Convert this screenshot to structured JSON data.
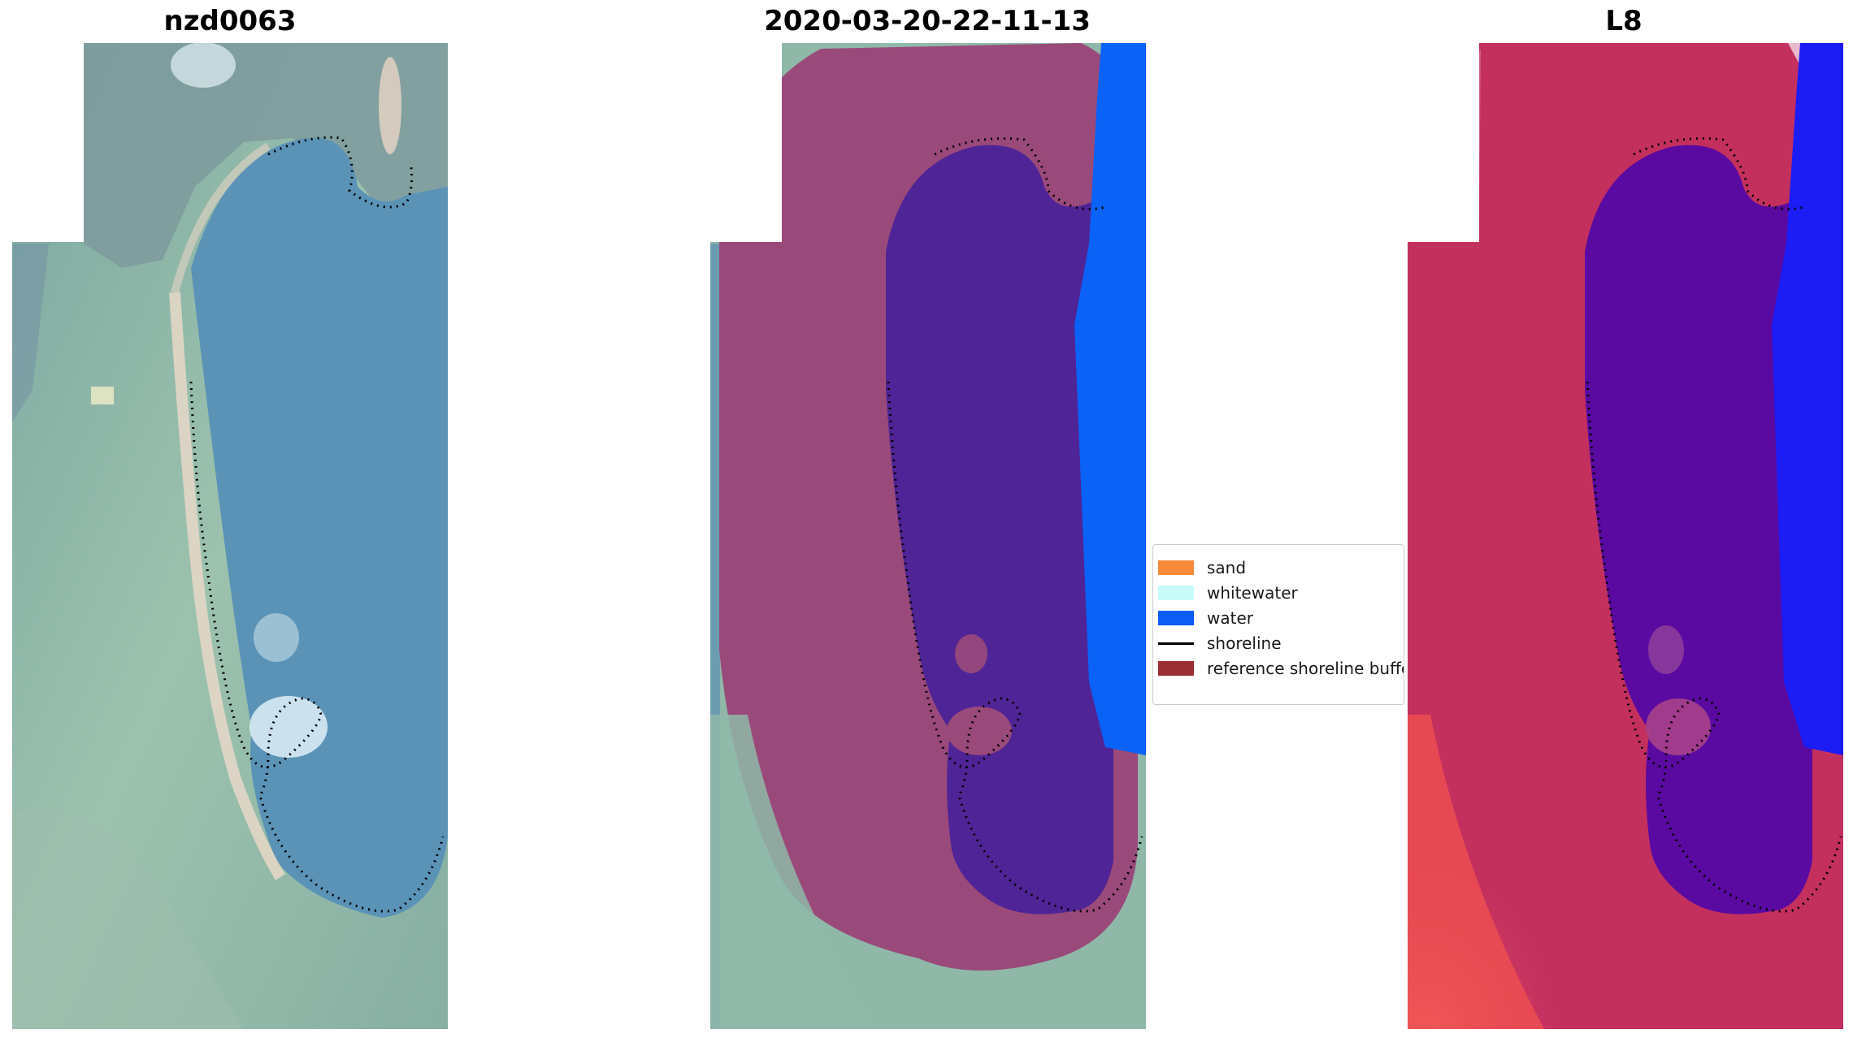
{
  "panels": [
    {
      "title": "nzd0063",
      "kind": "satellite-rgb"
    },
    {
      "title": "2020-03-20-22-11-13",
      "kind": "classification-overlay"
    },
    {
      "title": "L8",
      "kind": "water-index"
    }
  ],
  "legend": {
    "items": [
      {
        "label": "sand",
        "color": "#f88a3c",
        "shape": "patch"
      },
      {
        "label": "whitewater",
        "color": "#c8fafa",
        "shape": "patch"
      },
      {
        "label": "water",
        "color": "#0d5cf5",
        "shape": "patch"
      },
      {
        "label": "shoreline",
        "color": "#000000",
        "shape": "line"
      },
      {
        "label": "reference shoreline buffer",
        "color": "#9a2e33",
        "shape": "patch"
      }
    ]
  },
  "colors": {
    "rgb_water": "#5b92b8",
    "rgb_land": "#8fb8a8",
    "overlay_land": "#9a4a7a",
    "overlay_water": "#4f2496",
    "overlay_sea": "#0b62f7",
    "index_land": "#c4305e",
    "index_water": "#5a0aa0",
    "index_sea": "#1c1cf5",
    "index_bright": "#f54a4a"
  }
}
